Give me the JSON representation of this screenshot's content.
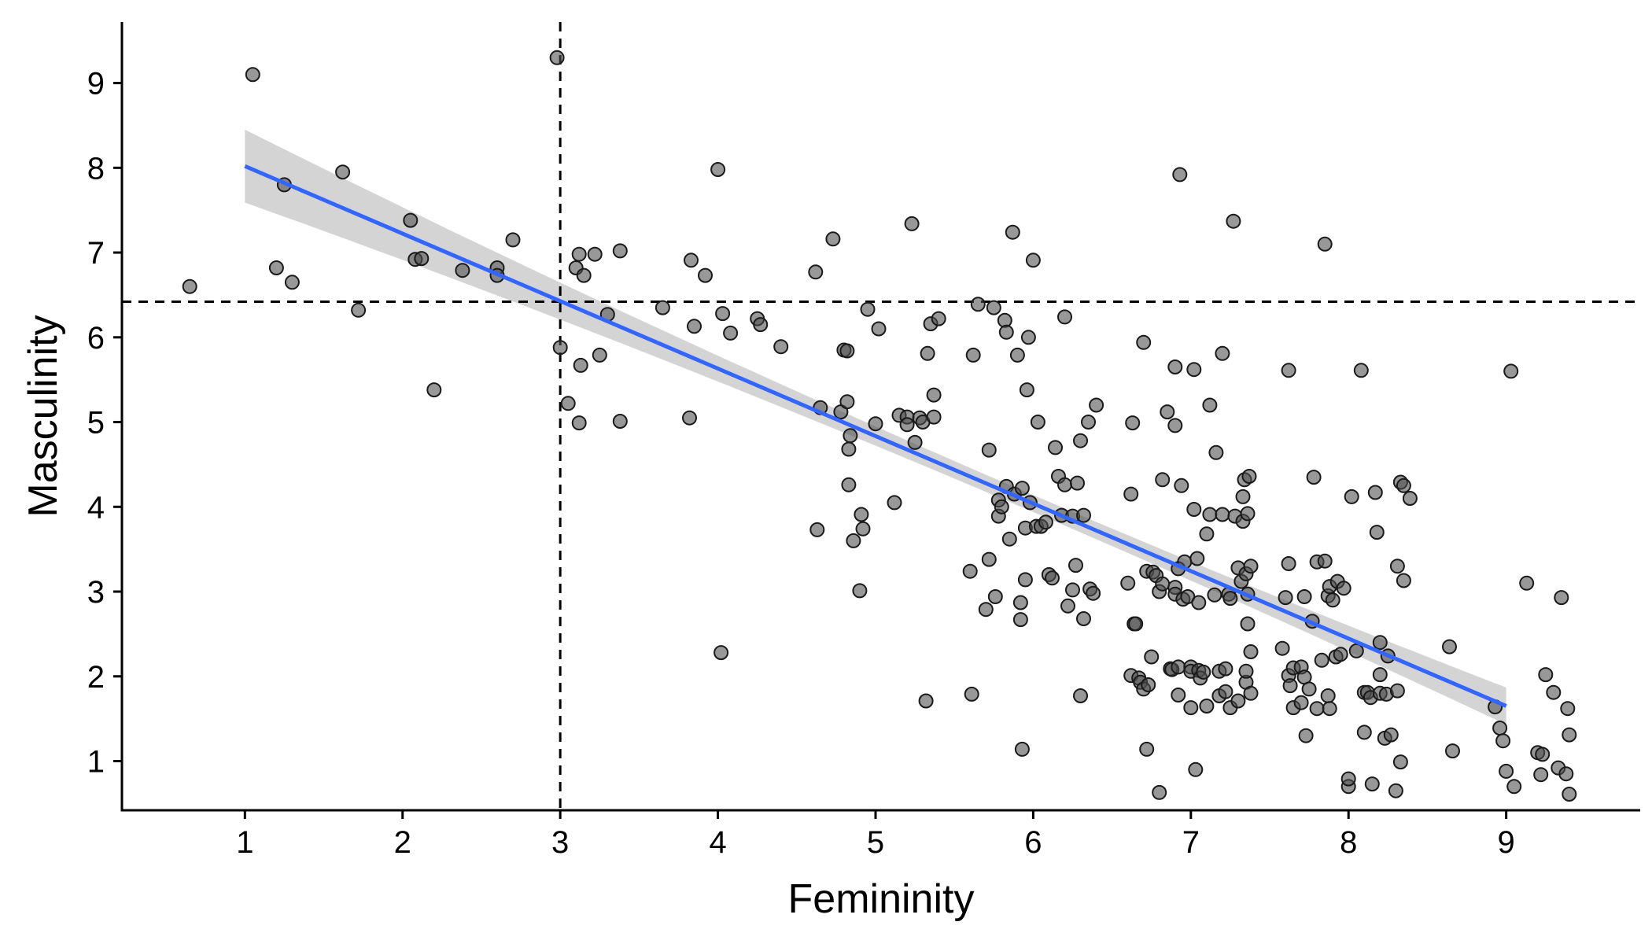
{
  "chart_data": {
    "type": "scatter",
    "title": "",
    "xlabel": "Femininity",
    "ylabel": "Masculinity",
    "xlim": [
      0.22,
      9.85
    ],
    "ylim": [
      0.42,
      9.72
    ],
    "x_ticks": [
      1,
      2,
      3,
      4,
      5,
      6,
      7,
      8,
      9
    ],
    "y_ticks": [
      1,
      2,
      3,
      4,
      5,
      6,
      7,
      8,
      9
    ],
    "x_tick_labels": [
      "1",
      "2",
      "3",
      "4",
      "5",
      "6",
      "7",
      "8",
      "9"
    ],
    "y_tick_labels": [
      "1",
      "2",
      "3",
      "4",
      "5",
      "6",
      "7",
      "8",
      "9"
    ],
    "reference_lines": {
      "vertical_x": 3.0,
      "horizontal_y": 6.42
    },
    "fit": {
      "method": "linear",
      "x_range": [
        1.0,
        9.0
      ],
      "y_start": 8.02,
      "y_end": 1.65,
      "ci_half_width_ends": 0.43,
      "ci_half_width_center": 0.1,
      "x_center": 6.0
    },
    "colors": {
      "points_fill": "#4d4d4d",
      "points_edge": "#1a1a1a",
      "fit_line": "#3366ff",
      "ci_band": "#cccccc",
      "axes": "#000000"
    },
    "points": [
      [
        0.65,
        6.6
      ],
      [
        1.05,
        9.1
      ],
      [
        1.2,
        6.82
      ],
      [
        1.25,
        7.8
      ],
      [
        1.3,
        6.65
      ],
      [
        1.62,
        7.95
      ],
      [
        1.72,
        6.32
      ],
      [
        2.05,
        7.38
      ],
      [
        2.08,
        6.92
      ],
      [
        2.12,
        6.93
      ],
      [
        2.2,
        5.38
      ],
      [
        2.38,
        6.79
      ],
      [
        2.6,
        6.82
      ],
      [
        2.6,
        6.73
      ],
      [
        2.7,
        7.15
      ],
      [
        2.98,
        9.3
      ],
      [
        3.0,
        5.88
      ],
      [
        3.05,
        5.22
      ],
      [
        3.1,
        6.82
      ],
      [
        3.12,
        6.98
      ],
      [
        3.12,
        4.99
      ],
      [
        3.13,
        5.67
      ],
      [
        3.15,
        6.73
      ],
      [
        3.22,
        6.98
      ],
      [
        3.25,
        5.79
      ],
      [
        3.3,
        6.27
      ],
      [
        3.38,
        7.02
      ],
      [
        3.38,
        5.01
      ],
      [
        3.65,
        6.35
      ],
      [
        3.82,
        5.05
      ],
      [
        3.83,
        6.91
      ],
      [
        3.85,
        6.13
      ],
      [
        3.92,
        6.73
      ],
      [
        4.0,
        7.98
      ],
      [
        4.02,
        2.28
      ],
      [
        4.03,
        6.28
      ],
      [
        4.08,
        6.05
      ],
      [
        4.25,
        6.22
      ],
      [
        4.27,
        6.15
      ],
      [
        4.4,
        5.89
      ],
      [
        4.62,
        6.77
      ],
      [
        4.63,
        3.73
      ],
      [
        4.65,
        5.17
      ],
      [
        4.73,
        7.16
      ],
      [
        4.78,
        5.12
      ],
      [
        4.8,
        5.85
      ],
      [
        4.82,
        5.84
      ],
      [
        4.82,
        5.24
      ],
      [
        4.83,
        4.68
      ],
      [
        4.83,
        4.26
      ],
      [
        4.84,
        4.84
      ],
      [
        4.86,
        3.6
      ],
      [
        4.9,
        3.01
      ],
      [
        4.91,
        3.91
      ],
      [
        4.92,
        3.74
      ],
      [
        4.95,
        6.33
      ],
      [
        5.0,
        4.98
      ],
      [
        5.02,
        6.1
      ],
      [
        5.12,
        4.05
      ],
      [
        5.15,
        5.08
      ],
      [
        5.2,
        5.06
      ],
      [
        5.2,
        4.97
      ],
      [
        5.23,
        7.34
      ],
      [
        5.25,
        4.76
      ],
      [
        5.28,
        5.05
      ],
      [
        5.3,
        5.0
      ],
      [
        5.32,
        1.71
      ],
      [
        5.33,
        5.81
      ],
      [
        5.35,
        6.16
      ],
      [
        5.37,
        5.32
      ],
      [
        5.37,
        5.06
      ],
      [
        5.4,
        6.22
      ],
      [
        5.6,
        3.24
      ],
      [
        5.61,
        1.79
      ],
      [
        5.62,
        5.79
      ],
      [
        5.65,
        6.39
      ],
      [
        5.7,
        2.79
      ],
      [
        5.72,
        3.38
      ],
      [
        5.72,
        4.67
      ],
      [
        5.75,
        6.35
      ],
      [
        5.76,
        2.94
      ],
      [
        5.78,
        3.89
      ],
      [
        5.78,
        4.08
      ],
      [
        5.8,
        4.0
      ],
      [
        5.82,
        6.2
      ],
      [
        5.83,
        6.06
      ],
      [
        5.83,
        4.24
      ],
      [
        5.85,
        3.62
      ],
      [
        5.87,
        7.24
      ],
      [
        5.88,
        4.15
      ],
      [
        5.9,
        5.79
      ],
      [
        5.92,
        2.87
      ],
      [
        5.92,
        2.67
      ],
      [
        5.93,
        1.14
      ],
      [
        5.93,
        4.22
      ],
      [
        5.95,
        3.75
      ],
      [
        5.95,
        3.14
      ],
      [
        5.96,
        5.38
      ],
      [
        5.97,
        6.0
      ],
      [
        5.98,
        4.05
      ],
      [
        6.0,
        6.91
      ],
      [
        6.02,
        3.77
      ],
      [
        6.03,
        5.0
      ],
      [
        6.05,
        3.77
      ],
      [
        6.08,
        3.82
      ],
      [
        6.1,
        3.2
      ],
      [
        6.12,
        3.16
      ],
      [
        6.14,
        4.7
      ],
      [
        6.16,
        4.36
      ],
      [
        6.18,
        3.9
      ],
      [
        6.2,
        6.24
      ],
      [
        6.2,
        4.26
      ],
      [
        6.22,
        2.83
      ],
      [
        6.25,
        3.02
      ],
      [
        6.25,
        3.89
      ],
      [
        6.27,
        3.31
      ],
      [
        6.28,
        4.28
      ],
      [
        6.3,
        4.78
      ],
      [
        6.3,
        1.77
      ],
      [
        6.32,
        2.68
      ],
      [
        6.32,
        3.9
      ],
      [
        6.35,
        5.0
      ],
      [
        6.36,
        3.03
      ],
      [
        6.38,
        2.98
      ],
      [
        6.4,
        5.2
      ],
      [
        6.6,
        3.1
      ],
      [
        6.62,
        2.01
      ],
      [
        6.62,
        4.15
      ],
      [
        6.63,
        4.99
      ],
      [
        6.64,
        2.62
      ],
      [
        6.65,
        2.62
      ],
      [
        6.67,
        1.98
      ],
      [
        6.68,
        1.93
      ],
      [
        6.7,
        1.85
      ],
      [
        6.7,
        5.94
      ],
      [
        6.72,
        1.14
      ],
      [
        6.72,
        3.24
      ],
      [
        6.73,
        1.9
      ],
      [
        6.75,
        2.23
      ],
      [
        6.76,
        3.23
      ],
      [
        6.78,
        3.19
      ],
      [
        6.8,
        3.0
      ],
      [
        6.8,
        0.63
      ],
      [
        6.82,
        4.32
      ],
      [
        6.82,
        3.09
      ],
      [
        6.85,
        5.12
      ],
      [
        6.87,
        2.09
      ],
      [
        6.88,
        2.08
      ],
      [
        6.9,
        3.05
      ],
      [
        6.9,
        2.97
      ],
      [
        6.9,
        4.96
      ],
      [
        6.9,
        5.65
      ],
      [
        6.92,
        2.11
      ],
      [
        6.92,
        3.27
      ],
      [
        6.92,
        1.78
      ],
      [
        6.93,
        7.92
      ],
      [
        6.94,
        4.25
      ],
      [
        6.95,
        2.91
      ],
      [
        6.96,
        3.35
      ],
      [
        6.98,
        2.94
      ],
      [
        7.0,
        2.11
      ],
      [
        7.0,
        2.06
      ],
      [
        7.0,
        1.63
      ],
      [
        7.02,
        5.62
      ],
      [
        7.02,
        3.97
      ],
      [
        7.03,
        0.9
      ],
      [
        7.04,
        3.39
      ],
      [
        7.05,
        2.07
      ],
      [
        7.05,
        2.87
      ],
      [
        7.06,
        1.98
      ],
      [
        7.08,
        2.05
      ],
      [
        7.1,
        3.68
      ],
      [
        7.1,
        1.65
      ],
      [
        7.12,
        3.91
      ],
      [
        7.12,
        5.2
      ],
      [
        7.15,
        2.96
      ],
      [
        7.16,
        4.64
      ],
      [
        7.18,
        1.77
      ],
      [
        7.18,
        2.06
      ],
      [
        7.2,
        3.91
      ],
      [
        7.2,
        5.81
      ],
      [
        7.22,
        1.82
      ],
      [
        7.22,
        2.09
      ],
      [
        7.24,
        2.97
      ],
      [
        7.25,
        1.63
      ],
      [
        7.25,
        2.92
      ],
      [
        7.27,
        7.37
      ],
      [
        7.28,
        3.89
      ],
      [
        7.3,
        3.28
      ],
      [
        7.3,
        1.71
      ],
      [
        7.32,
        3.12
      ],
      [
        7.33,
        3.83
      ],
      [
        7.33,
        4.12
      ],
      [
        7.34,
        4.32
      ],
      [
        7.35,
        3.21
      ],
      [
        7.35,
        1.93
      ],
      [
        7.35,
        2.06
      ],
      [
        7.36,
        2.62
      ],
      [
        7.36,
        2.97
      ],
      [
        7.36,
        3.92
      ],
      [
        7.37,
        4.36
      ],
      [
        7.38,
        3.3
      ],
      [
        7.38,
        1.8
      ],
      [
        7.38,
        2.29
      ],
      [
        7.58,
        2.33
      ],
      [
        7.6,
        2.93
      ],
      [
        7.62,
        5.61
      ],
      [
        7.62,
        3.33
      ],
      [
        7.62,
        2.01
      ],
      [
        7.63,
        1.89
      ],
      [
        7.65,
        1.63
      ],
      [
        7.65,
        2.1
      ],
      [
        7.7,
        2.11
      ],
      [
        7.7,
        1.69
      ],
      [
        7.72,
        2.94
      ],
      [
        7.72,
        1.99
      ],
      [
        7.73,
        1.3
      ],
      [
        7.75,
        1.85
      ],
      [
        7.77,
        2.65
      ],
      [
        7.78,
        4.35
      ],
      [
        7.8,
        1.62
      ],
      [
        7.8,
        3.35
      ],
      [
        7.83,
        2.19
      ],
      [
        7.85,
        7.1
      ],
      [
        7.85,
        3.36
      ],
      [
        7.87,
        2.95
      ],
      [
        7.87,
        1.77
      ],
      [
        7.88,
        1.62
      ],
      [
        7.88,
        3.06
      ],
      [
        7.9,
        2.9
      ],
      [
        7.92,
        2.23
      ],
      [
        7.93,
        3.12
      ],
      [
        7.95,
        2.26
      ],
      [
        7.97,
        3.04
      ],
      [
        8.0,
        0.7
      ],
      [
        8.0,
        0.79
      ],
      [
        8.02,
        4.12
      ],
      [
        8.05,
        2.3
      ],
      [
        8.08,
        5.61
      ],
      [
        8.1,
        1.34
      ],
      [
        8.1,
        1.81
      ],
      [
        8.12,
        1.81
      ],
      [
        8.14,
        1.75
      ],
      [
        8.15,
        0.73
      ],
      [
        8.17,
        4.17
      ],
      [
        8.18,
        3.7
      ],
      [
        8.2,
        2.4
      ],
      [
        8.2,
        1.8
      ],
      [
        8.2,
        2.02
      ],
      [
        8.23,
        1.27
      ],
      [
        8.24,
        1.79
      ],
      [
        8.25,
        2.24
      ],
      [
        8.27,
        1.31
      ],
      [
        8.3,
        0.65
      ],
      [
        8.31,
        1.83
      ],
      [
        8.31,
        3.3
      ],
      [
        8.33,
        0.99
      ],
      [
        8.33,
        4.29
      ],
      [
        8.35,
        3.13
      ],
      [
        8.35,
        4.25
      ],
      [
        8.39,
        4.1
      ],
      [
        8.64,
        2.35
      ],
      [
        8.66,
        1.12
      ],
      [
        8.93,
        1.64
      ],
      [
        8.96,
        1.39
      ],
      [
        8.98,
        1.24
      ],
      [
        9.0,
        0.88
      ],
      [
        9.03,
        5.6
      ],
      [
        9.05,
        0.7
      ],
      [
        9.13,
        3.1
      ],
      [
        9.2,
        1.1
      ],
      [
        9.22,
        0.84
      ],
      [
        9.23,
        1.08
      ],
      [
        9.25,
        2.02
      ],
      [
        9.3,
        1.81
      ],
      [
        9.33,
        0.92
      ],
      [
        9.35,
        2.93
      ],
      [
        9.38,
        0.85
      ],
      [
        9.39,
        1.62
      ],
      [
        9.4,
        1.31
      ],
      [
        9.4,
        0.61
      ]
    ]
  }
}
